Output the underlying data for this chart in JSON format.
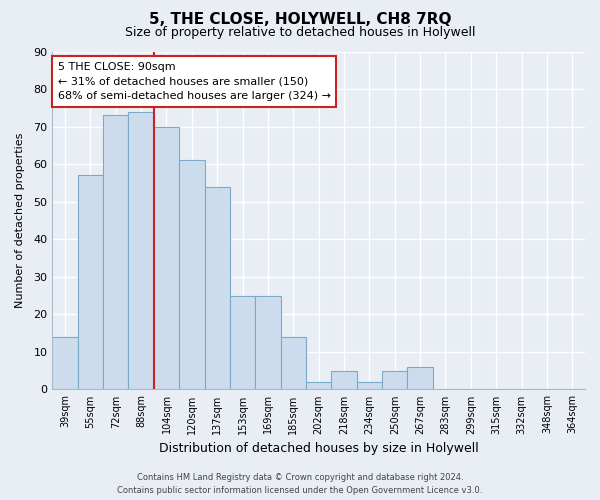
{
  "title": "5, THE CLOSE, HOLYWELL, CH8 7RQ",
  "subtitle": "Size of property relative to detached houses in Holywell",
  "xlabel": "Distribution of detached houses by size in Holywell",
  "ylabel": "Number of detached properties",
  "bar_labels": [
    "39sqm",
    "55sqm",
    "72sqm",
    "88sqm",
    "104sqm",
    "120sqm",
    "137sqm",
    "153sqm",
    "169sqm",
    "185sqm",
    "202sqm",
    "218sqm",
    "234sqm",
    "250sqm",
    "267sqm",
    "283sqm",
    "299sqm",
    "315sqm",
    "332sqm",
    "348sqm",
    "364sqm"
  ],
  "bar_values": [
    14,
    57,
    73,
    74,
    70,
    61,
    54,
    25,
    25,
    14,
    2,
    5,
    2,
    5,
    6,
    0,
    0,
    0,
    0,
    0,
    0
  ],
  "bar_color": "#ccdcec",
  "bar_edge_color": "#7aaac8",
  "ylim": [
    0,
    90
  ],
  "yticks": [
    0,
    10,
    20,
    30,
    40,
    50,
    60,
    70,
    80,
    90
  ],
  "red_line_color": "#cc2222",
  "annotation_title": "5 THE CLOSE: 90sqm",
  "annotation_line1": "← 31% of detached houses are smaller (150)",
  "annotation_line2": "68% of semi-detached houses are larger (324) →",
  "annotation_box_facecolor": "#ffffff",
  "annotation_box_edgecolor": "#cc2222",
  "footer1": "Contains HM Land Registry data © Crown copyright and database right 2024.",
  "footer2": "Contains public sector information licensed under the Open Government Licence v3.0.",
  "background_color": "#e8eef4",
  "grid_color": "#ffffff",
  "spine_color": "#aabbcc"
}
